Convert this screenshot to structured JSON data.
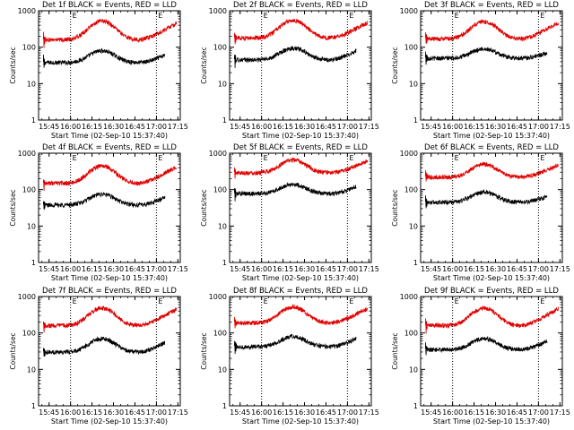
{
  "figure": {
    "background": "#ffffff",
    "axis_color": "#000000",
    "events_color": "#000000",
    "lld_color": "#e00000",
    "marker_label": "E"
  },
  "chart_data": [
    {
      "type": "line",
      "title": "Det 1f BLACK = Events, RED = LLD",
      "xlabel": "Start Time (02-Sep-10 15:37:40)",
      "ylabel": "Counts/sec",
      "x_tick_labels": [
        "15:45",
        "16:00",
        "16:15",
        "16:30",
        "16:45",
        "17:00",
        "17:15"
      ],
      "x_range": [
        "15:37:40",
        "17:16:40"
      ],
      "y_scale": "log",
      "ylim": [
        1,
        1000
      ],
      "y_tick_labels": [
        "1",
        "10",
        "100",
        "1000"
      ],
      "markers": [
        "16:00",
        "17:00"
      ],
      "marker_label": "E",
      "series": [
        {
          "name": "Events",
          "color": "#000000",
          "x_start": "15:41",
          "x_end": "17:06",
          "baseline": 38,
          "peak": 80,
          "peak_time": "16:22",
          "end_value": 60
        },
        {
          "name": "LLD",
          "color": "#e00000",
          "x_start": "15:41",
          "x_end": "17:14",
          "baseline": 160,
          "peak": 520,
          "peak_time": "16:22",
          "end_value": 450
        }
      ]
    },
    {
      "type": "line",
      "title": "Det 2f BLACK = Events, RED = LLD",
      "xlabel": "Start Time (02-Sep-10 15:37:40)",
      "ylabel": "Counts/sec",
      "x_tick_labels": [
        "15:45",
        "16:00",
        "16:15",
        "16:30",
        "16:45",
        "17:00",
        "17:15"
      ],
      "x_range": [
        "15:37:40",
        "17:16:40"
      ],
      "y_scale": "log",
      "ylim": [
        1,
        1000
      ],
      "y_tick_labels": [
        "1",
        "10",
        "100",
        "1000"
      ],
      "markers": [
        "16:00",
        "17:00"
      ],
      "marker_label": "E",
      "series": [
        {
          "name": "Events",
          "color": "#000000",
          "x_start": "15:41",
          "x_end": "17:06",
          "baseline": 45,
          "peak": 95,
          "peak_time": "16:22",
          "end_value": 80
        },
        {
          "name": "LLD",
          "color": "#e00000",
          "x_start": "15:41",
          "x_end": "17:14",
          "baseline": 180,
          "peak": 550,
          "peak_time": "16:22",
          "end_value": 480
        }
      ]
    },
    {
      "type": "line",
      "title": "Det 3f BLACK = Events, RED = LLD",
      "xlabel": "Start Time (02-Sep-10 15:37:40)",
      "ylabel": "Counts/sec",
      "x_tick_labels": [
        "15:45",
        "16:00",
        "16:15",
        "16:30",
        "16:45",
        "17:00",
        "17:15"
      ],
      "x_range": [
        "15:37:40",
        "17:16:40"
      ],
      "y_scale": "log",
      "ylim": [
        1,
        1000
      ],
      "y_tick_labels": [
        "1",
        "10",
        "100",
        "1000"
      ],
      "markers": [
        "16:00",
        "17:00"
      ],
      "marker_label": "E",
      "series": [
        {
          "name": "Events",
          "color": "#000000",
          "x_start": "15:41",
          "x_end": "17:06",
          "baseline": 50,
          "peak": 90,
          "peak_time": "16:22",
          "end_value": 70
        },
        {
          "name": "LLD",
          "color": "#e00000",
          "x_start": "15:41",
          "x_end": "17:14",
          "baseline": 170,
          "peak": 500,
          "peak_time": "16:22",
          "end_value": 470
        }
      ]
    },
    {
      "type": "line",
      "title": "Det 4f BLACK = Events, RED = LLD",
      "xlabel": "Start Time (02-Sep-10 15:37:40)",
      "ylabel": "Counts/sec",
      "x_tick_labels": [
        "15:45",
        "16:00",
        "16:15",
        "16:30",
        "16:45",
        "17:00",
        "17:15"
      ],
      "x_range": [
        "15:37:40",
        "17:16:40"
      ],
      "y_scale": "log",
      "ylim": [
        1,
        1000
      ],
      "y_tick_labels": [
        "1",
        "10",
        "100",
        "1000"
      ],
      "markers": [
        "16:00",
        "17:00"
      ],
      "marker_label": "E",
      "series": [
        {
          "name": "Events",
          "color": "#000000",
          "x_start": "15:41",
          "x_end": "17:06",
          "baseline": 38,
          "peak": 75,
          "peak_time": "16:22",
          "end_value": 62
        },
        {
          "name": "LLD",
          "color": "#e00000",
          "x_start": "15:41",
          "x_end": "17:14",
          "baseline": 150,
          "peak": 450,
          "peak_time": "16:22",
          "end_value": 420
        }
      ]
    },
    {
      "type": "line",
      "title": "Det 5f BLACK = Events, RED = LLD",
      "xlabel": "Start Time (02-Sep-10 15:37:40)",
      "ylabel": "Counts/sec",
      "x_tick_labels": [
        "15:45",
        "16:00",
        "16:15",
        "16:30",
        "16:45",
        "17:00",
        "17:15"
      ],
      "x_range": [
        "15:37:40",
        "17:16:40"
      ],
      "y_scale": "log",
      "ylim": [
        1,
        1000
      ],
      "y_tick_labels": [
        "1",
        "10",
        "100",
        "1000"
      ],
      "markers": [
        "16:00",
        "17:00"
      ],
      "marker_label": "E",
      "series": [
        {
          "name": "Events",
          "color": "#000000",
          "x_start": "15:41",
          "x_end": "17:06",
          "baseline": 78,
          "peak": 140,
          "peak_time": "16:22",
          "end_value": 120
        },
        {
          "name": "LLD",
          "color": "#e00000",
          "x_start": "15:41",
          "x_end": "17:14",
          "baseline": 290,
          "peak": 650,
          "peak_time": "16:22",
          "end_value": 620
        }
      ]
    },
    {
      "type": "line",
      "title": "Det 6f BLACK = Events, RED = LLD",
      "xlabel": "Start Time (02-Sep-10 15:37:40)",
      "ylabel": "Counts/sec",
      "x_tick_labels": [
        "15:45",
        "16:00",
        "16:15",
        "16:30",
        "16:45",
        "17:00",
        "17:15"
      ],
      "x_range": [
        "15:37:40",
        "17:16:40"
      ],
      "y_scale": "log",
      "ylim": [
        1,
        1000
      ],
      "y_tick_labels": [
        "1",
        "10",
        "100",
        "1000"
      ],
      "markers": [
        "16:00",
        "17:00"
      ],
      "marker_label": "E",
      "series": [
        {
          "name": "Events",
          "color": "#000000",
          "x_start": "15:41",
          "x_end": "17:06",
          "baseline": 45,
          "peak": 85,
          "peak_time": "16:22",
          "end_value": 65
        },
        {
          "name": "LLD",
          "color": "#e00000",
          "x_start": "15:41",
          "x_end": "17:14",
          "baseline": 220,
          "peak": 500,
          "peak_time": "16:22",
          "end_value": 480
        }
      ]
    },
    {
      "type": "line",
      "title": "Det 7f BLACK = Events, RED = LLD",
      "xlabel": "Start Time (02-Sep-10 15:37:40)",
      "ylabel": "Counts/sec",
      "x_tick_labels": [
        "15:45",
        "16:00",
        "16:15",
        "16:30",
        "16:45",
        "17:00",
        "17:15"
      ],
      "x_range": [
        "15:37:40",
        "17:16:40"
      ],
      "y_scale": "log",
      "ylim": [
        1,
        1000
      ],
      "y_tick_labels": [
        "1",
        "10",
        "100",
        "1000"
      ],
      "markers": [
        "16:00",
        "17:00"
      ],
      "marker_label": "E",
      "series": [
        {
          "name": "Events",
          "color": "#000000",
          "x_start": "15:41",
          "x_end": "17:06",
          "baseline": 30,
          "peak": 70,
          "peak_time": "16:22",
          "end_value": 55
        },
        {
          "name": "LLD",
          "color": "#e00000",
          "x_start": "15:41",
          "x_end": "17:14",
          "baseline": 160,
          "peak": 480,
          "peak_time": "16:22",
          "end_value": 450
        }
      ]
    },
    {
      "type": "line",
      "title": "Det 8f BLACK = Events, RED = LLD",
      "xlabel": "Start Time (02-Sep-10 15:37:40)",
      "ylabel": "Counts/sec",
      "x_tick_labels": [
        "15:45",
        "16:00",
        "16:15",
        "16:30",
        "16:45",
        "17:00",
        "17:15"
      ],
      "x_range": [
        "15:37:40",
        "17:16:40"
      ],
      "y_scale": "log",
      "ylim": [
        1,
        1000
      ],
      "y_tick_labels": [
        "1",
        "10",
        "100",
        "1000"
      ],
      "markers": [
        "16:00",
        "17:00"
      ],
      "marker_label": "E",
      "series": [
        {
          "name": "Events",
          "color": "#000000",
          "x_start": "15:41",
          "x_end": "17:06",
          "baseline": 42,
          "peak": 80,
          "peak_time": "16:22",
          "end_value": 70
        },
        {
          "name": "LLD",
          "color": "#e00000",
          "x_start": "15:41",
          "x_end": "17:14",
          "baseline": 190,
          "peak": 520,
          "peak_time": "16:22",
          "end_value": 470
        }
      ]
    },
    {
      "type": "line",
      "title": "Det 9f BLACK = Events, RED = LLD",
      "xlabel": "Start Time (02-Sep-10 15:37:40)",
      "ylabel": "Counts/sec",
      "x_tick_labels": [
        "15:45",
        "16:00",
        "16:15",
        "16:30",
        "16:45",
        "17:00",
        "17:15"
      ],
      "x_range": [
        "15:37:40",
        "17:16:40"
      ],
      "y_scale": "log",
      "ylim": [
        1,
        1000
      ],
      "y_tick_labels": [
        "1",
        "10",
        "100",
        "1000"
      ],
      "markers": [
        "16:00",
        "17:00"
      ],
      "marker_label": "E",
      "series": [
        {
          "name": "Events",
          "color": "#000000",
          "x_start": "15:41",
          "x_end": "17:06",
          "baseline": 35,
          "peak": 70,
          "peak_time": "16:22",
          "end_value": 60
        },
        {
          "name": "LLD",
          "color": "#e00000",
          "x_start": "15:41",
          "x_end": "17:14",
          "baseline": 160,
          "peak": 480,
          "peak_time": "16:22",
          "end_value": 470
        }
      ]
    }
  ]
}
